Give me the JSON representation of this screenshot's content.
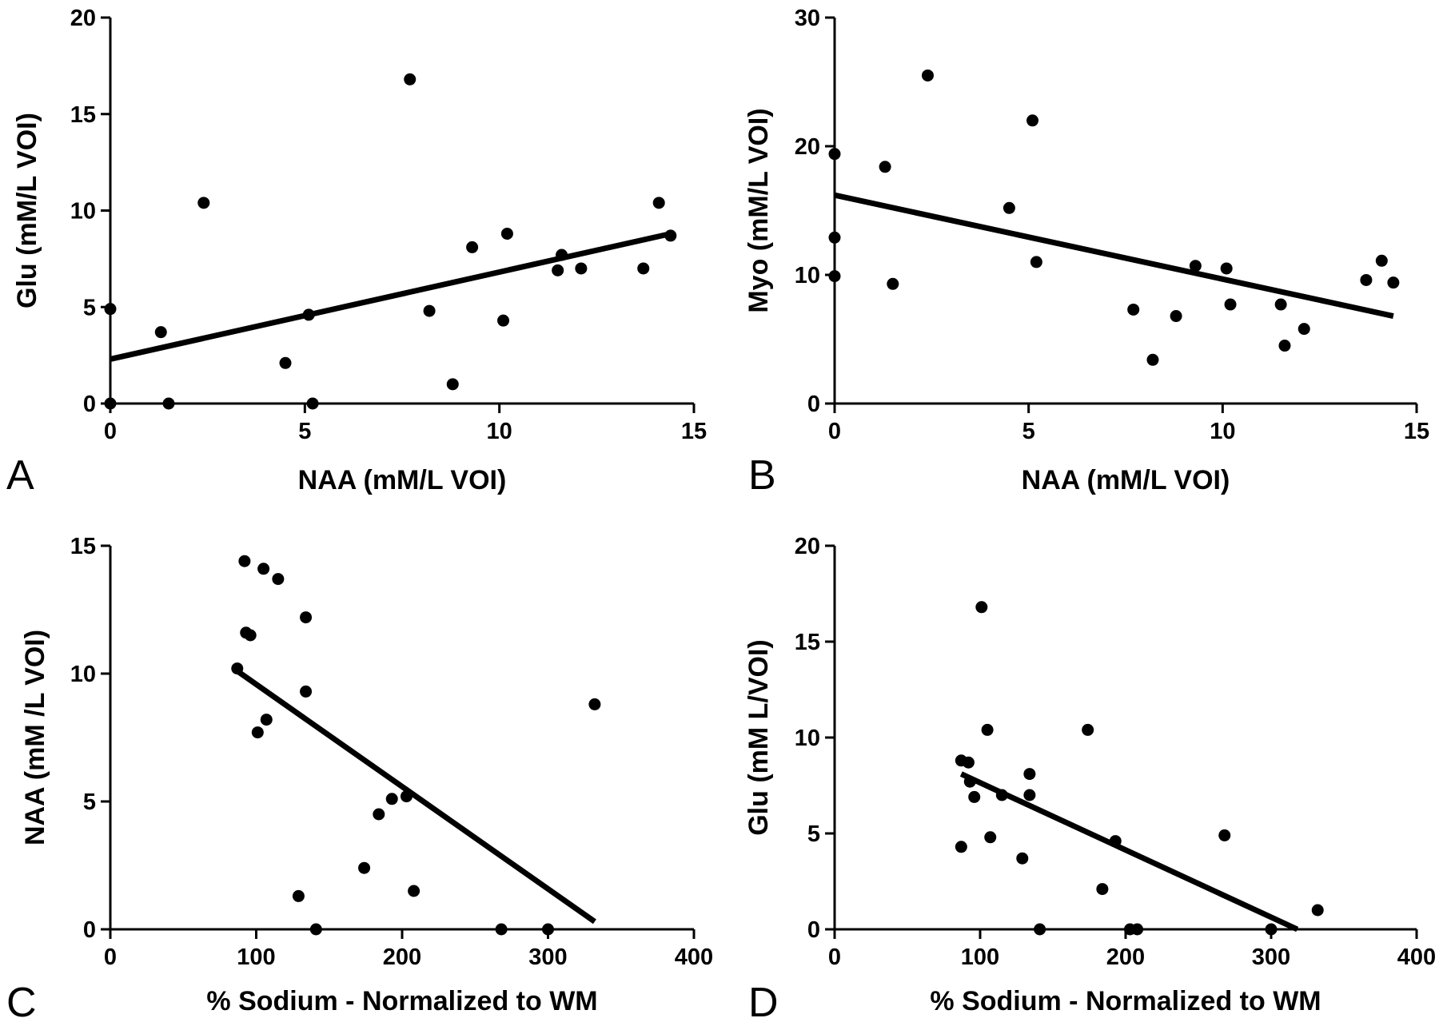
{
  "chart_data": [
    {
      "type": "scatter",
      "panel_label": "A",
      "xlabel": "NAA (mM/L  VOI)",
      "ylabel": "Glu (mM/L VOI)",
      "xlim": [
        0,
        15
      ],
      "ylim": [
        0,
        20
      ],
      "x_ticks": [
        0,
        5,
        10,
        15
      ],
      "y_ticks": [
        0,
        5,
        10,
        15,
        20
      ],
      "grid": false,
      "points": [
        [
          0,
          4.9
        ],
        [
          0,
          0
        ],
        [
          1.3,
          3.7
        ],
        [
          1.5,
          0
        ],
        [
          2.4,
          10.4
        ],
        [
          4.5,
          2.1
        ],
        [
          5.1,
          4.6
        ],
        [
          5.2,
          0
        ],
        [
          7.7,
          16.8
        ],
        [
          8.2,
          4.8
        ],
        [
          8.8,
          1.0
        ],
        [
          9.3,
          8.1
        ],
        [
          10.1,
          4.3
        ],
        [
          10.2,
          8.8
        ],
        [
          11.5,
          6.9
        ],
        [
          11.6,
          7.7
        ],
        [
          12.1,
          7.0
        ],
        [
          13.7,
          7.0
        ],
        [
          14.1,
          10.4
        ],
        [
          14.4,
          8.7
        ]
      ],
      "trendline": [
        [
          0,
          2.3
        ],
        [
          14.4,
          8.8
        ]
      ]
    },
    {
      "type": "scatter",
      "panel_label": "B",
      "xlabel": "NAA (mM/L VOI)",
      "ylabel": "Myo (mM/L VOI)",
      "xlim": [
        0,
        15
      ],
      "ylim": [
        0,
        30
      ],
      "x_ticks": [
        0,
        5,
        10,
        15
      ],
      "y_ticks": [
        0,
        10,
        20,
        30
      ],
      "grid": false,
      "points": [
        [
          0,
          19.4
        ],
        [
          0,
          12.9
        ],
        [
          0,
          9.9
        ],
        [
          1.3,
          18.4
        ],
        [
          1.5,
          9.3
        ],
        [
          2.4,
          25.5
        ],
        [
          4.5,
          15.2
        ],
        [
          5.1,
          22.0
        ],
        [
          5.2,
          11.0
        ],
        [
          7.7,
          7.3
        ],
        [
          8.2,
          3.4
        ],
        [
          8.8,
          6.8
        ],
        [
          9.3,
          10.7
        ],
        [
          10.1,
          10.5
        ],
        [
          10.2,
          7.7
        ],
        [
          11.5,
          7.7
        ],
        [
          11.6,
          4.5
        ],
        [
          12.1,
          5.8
        ],
        [
          13.7,
          9.6
        ],
        [
          14.1,
          11.1
        ],
        [
          14.4,
          9.4
        ]
      ],
      "trendline": [
        [
          0,
          16.2
        ],
        [
          14.4,
          6.8
        ]
      ]
    },
    {
      "type": "scatter",
      "panel_label": "C",
      "xlabel": "% Sodium - Normalized to WM",
      "ylabel": "NAA (mM /L VOI)",
      "xlim": [
        0,
        400
      ],
      "ylim": [
        0,
        15
      ],
      "x_ticks": [
        0,
        100,
        200,
        300,
        400
      ],
      "y_ticks": [
        0,
        5,
        10,
        15
      ],
      "grid": false,
      "points": [
        [
          87,
          10.2
        ],
        [
          92,
          14.4
        ],
        [
          93,
          11.6
        ],
        [
          96,
          11.5
        ],
        [
          101,
          7.7
        ],
        [
          105,
          14.1
        ],
        [
          107,
          8.2
        ],
        [
          115,
          13.7
        ],
        [
          129,
          1.3
        ],
        [
          134,
          12.2
        ],
        [
          134,
          9.3
        ],
        [
          141,
          0
        ],
        [
          174,
          2.4
        ],
        [
          184,
          4.5
        ],
        [
          193,
          5.1
        ],
        [
          203,
          5.2
        ],
        [
          208,
          1.5
        ],
        [
          268,
          0
        ],
        [
          300,
          0
        ],
        [
          332,
          8.8
        ]
      ],
      "trendline": [
        [
          87,
          10.1
        ],
        [
          332,
          0.3
        ]
      ]
    },
    {
      "type": "scatter",
      "panel_label": "D",
      "xlabel": "% Sodium - Normalized to WM",
      "ylabel": "Glu (mM L/VOI)",
      "xlim": [
        0,
        400
      ],
      "ylim": [
        0,
        20
      ],
      "x_ticks": [
        0,
        100,
        200,
        300,
        400
      ],
      "y_ticks": [
        0,
        5,
        10,
        15,
        20
      ],
      "grid": false,
      "points": [
        [
          87,
          4.3
        ],
        [
          87,
          8.8
        ],
        [
          92,
          8.7
        ],
        [
          93,
          7.7
        ],
        [
          96,
          6.9
        ],
        [
          101,
          16.8
        ],
        [
          105,
          10.4
        ],
        [
          107,
          4.8
        ],
        [
          115,
          7.0
        ],
        [
          129,
          3.7
        ],
        [
          134,
          7.0
        ],
        [
          134,
          8.1
        ],
        [
          141,
          0
        ],
        [
          174,
          10.4
        ],
        [
          184,
          2.1
        ],
        [
          193,
          4.6
        ],
        [
          203,
          0
        ],
        [
          208,
          0
        ],
        [
          268,
          4.9
        ],
        [
          300,
          0
        ],
        [
          332,
          1.0
        ]
      ],
      "trendline": [
        [
          87,
          8.1
        ],
        [
          318,
          0
        ]
      ]
    }
  ]
}
